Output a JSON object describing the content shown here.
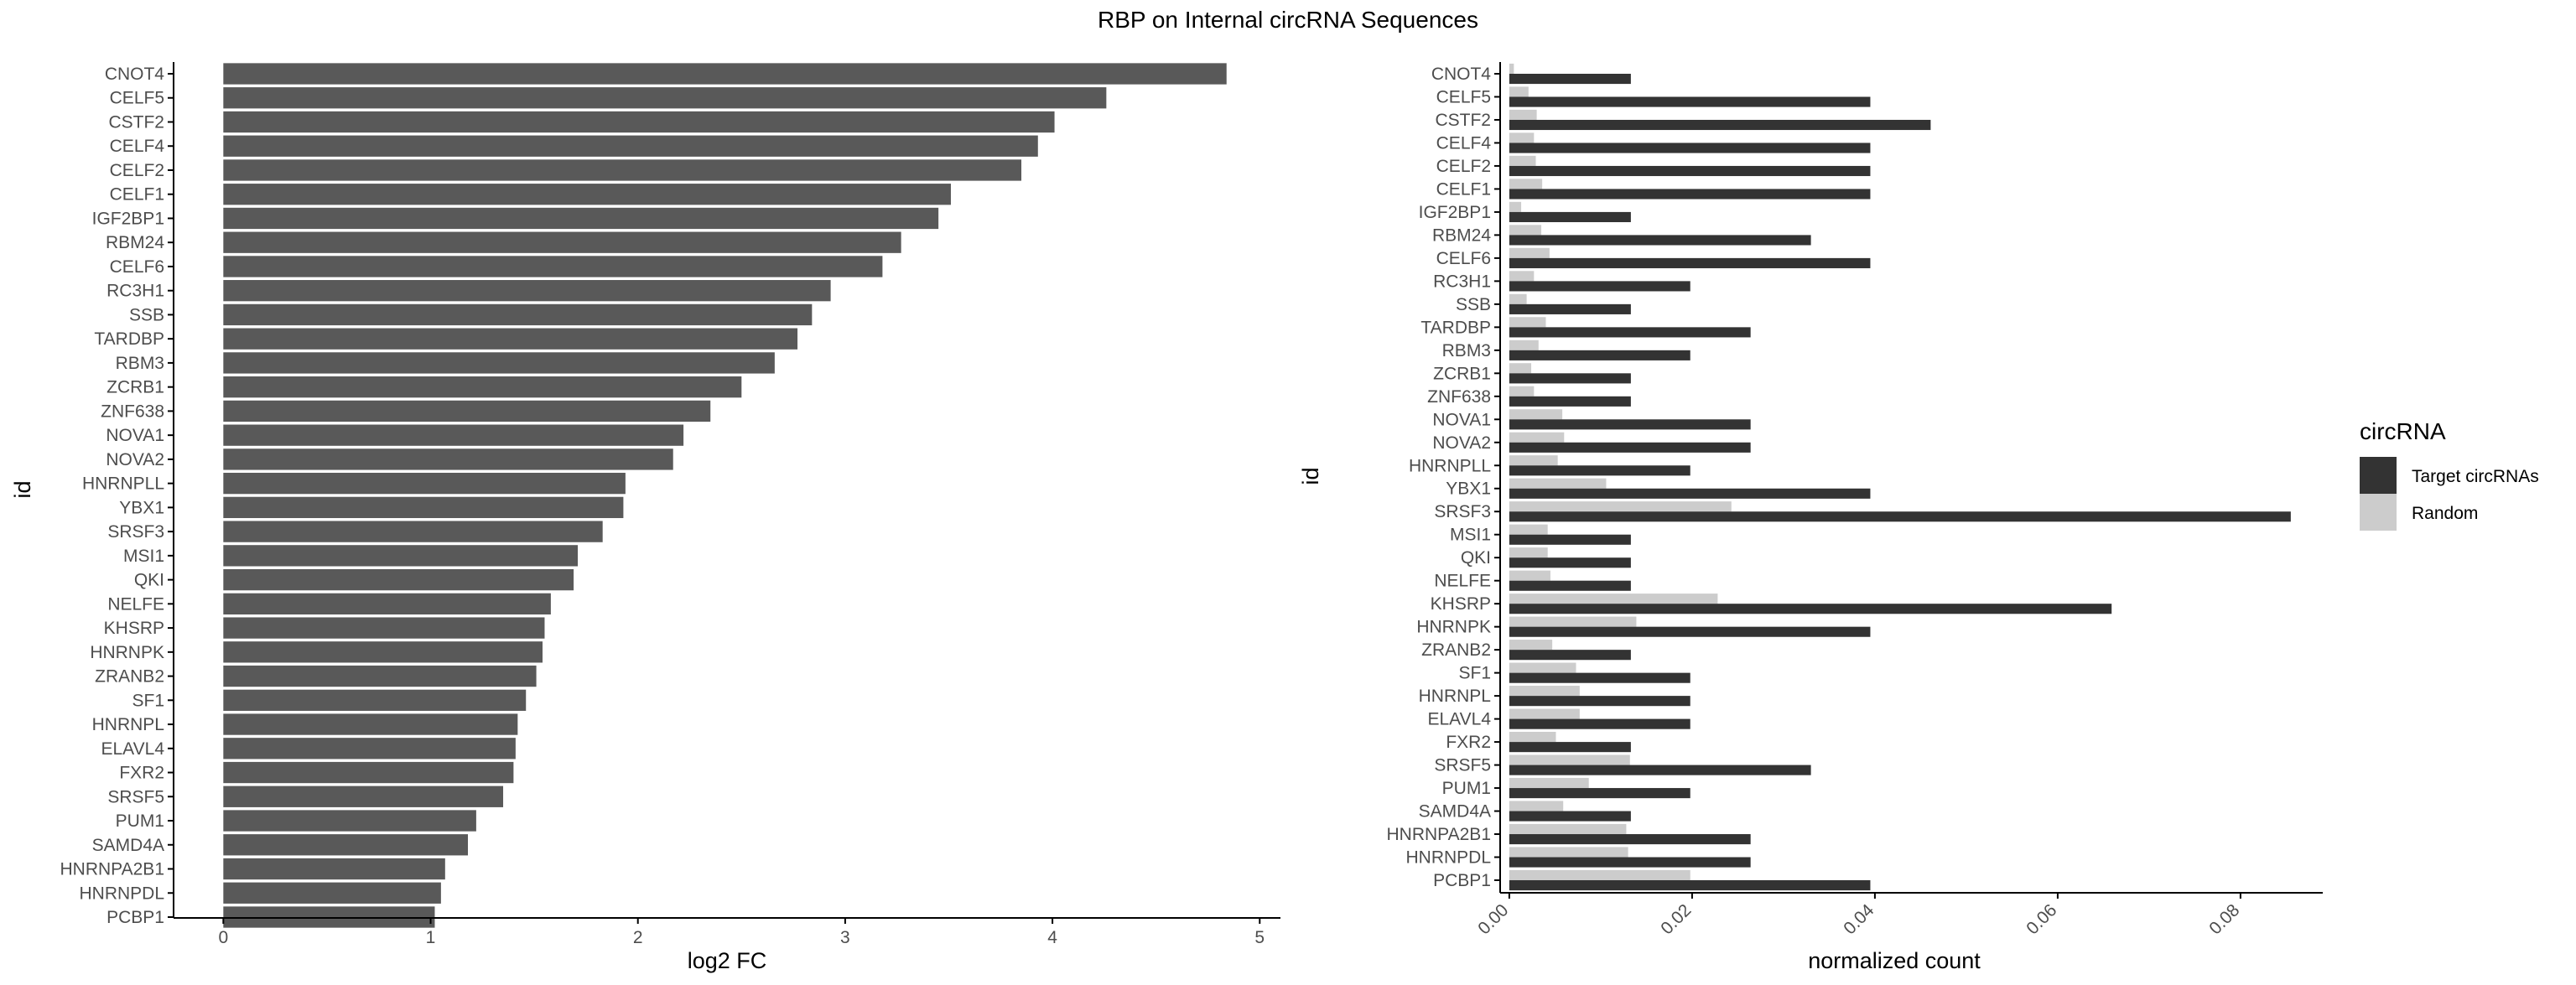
{
  "title": "RBP on Internal circRNA Sequences",
  "colors": {
    "left_bar": "#595959",
    "target": "#333333",
    "random": "#cccccc",
    "axis": "#000000",
    "tick_label": "#4d4d4d",
    "text": "#000000"
  },
  "chart_data": [
    {
      "type": "bar",
      "orientation": "horizontal",
      "xlabel": "log2 FC",
      "ylabel": "id",
      "xlim": [
        -0.24,
        5.1
      ],
      "xticks": [
        0,
        1,
        2,
        3,
        4,
        5
      ],
      "xtick_labels": [
        "0",
        "1",
        "2",
        "3",
        "4",
        "5"
      ],
      "grid": false,
      "categories": [
        "CNOT4",
        "CELF5",
        "CSTF2",
        "CELF4",
        "CELF2",
        "CELF1",
        "IGF2BP1",
        "RBM24",
        "CELF6",
        "RC3H1",
        "SSB",
        "TARDBP",
        "RBM3",
        "ZCRB1",
        "ZNF638",
        "NOVA1",
        "NOVA2",
        "HNRNPLL",
        "YBX1",
        "SRSF3",
        "MSI1",
        "QKI",
        "NELFE",
        "KHSRP",
        "HNRNPK",
        "ZRANB2",
        "SF1",
        "HNRNPL",
        "ELAVL4",
        "FXR2",
        "SRSF5",
        "PUM1",
        "SAMD4A",
        "HNRNPA2B1",
        "HNRNPDL",
        "PCBP1"
      ],
      "values": [
        4.84,
        4.26,
        4.01,
        3.93,
        3.85,
        3.51,
        3.45,
        3.27,
        3.18,
        2.93,
        2.84,
        2.77,
        2.66,
        2.5,
        2.35,
        2.22,
        2.17,
        1.94,
        1.93,
        1.83,
        1.71,
        1.69,
        1.58,
        1.55,
        1.54,
        1.51,
        1.46,
        1.42,
        1.41,
        1.4,
        1.35,
        1.22,
        1.18,
        1.07,
        1.05,
        1.02
      ]
    },
    {
      "type": "bar",
      "orientation": "horizontal",
      "xlabel": "normalized count",
      "ylabel": "id",
      "xlim": [
        -0.001,
        0.089
      ],
      "xticks": [
        0,
        0.02,
        0.04,
        0.06,
        0.08
      ],
      "xtick_labels": [
        "0.00",
        "0.02",
        "0.04",
        "0.06",
        "0.08"
      ],
      "grid": false,
      "legend": {
        "title": "circRNA",
        "position": "right"
      },
      "categories": [
        "CNOT4",
        "CELF5",
        "CSTF2",
        "CELF4",
        "CELF2",
        "CELF1",
        "IGF2BP1",
        "RBM24",
        "CELF6",
        "RC3H1",
        "SSB",
        "TARDBP",
        "RBM3",
        "ZCRB1",
        "ZNF638",
        "NOVA1",
        "NOVA2",
        "HNRNPLL",
        "YBX1",
        "SRSF3",
        "MSI1",
        "QKI",
        "NELFE",
        "KHSRP",
        "HNRNPK",
        "ZRANB2",
        "SF1",
        "HNRNPL",
        "ELAVL4",
        "FXR2",
        "SRSF5",
        "PUM1",
        "SAMD4A",
        "HNRNPA2B1",
        "HNRNPDL",
        "PCBP1"
      ],
      "series": [
        {
          "name": "Target circRNAs",
          "values": [
            0.0133,
            0.0395,
            0.0461,
            0.0395,
            0.0395,
            0.0395,
            0.0133,
            0.033,
            0.0395,
            0.0198,
            0.0133,
            0.0264,
            0.0198,
            0.0133,
            0.0133,
            0.0264,
            0.0264,
            0.0198,
            0.0395,
            0.0855,
            0.0133,
            0.0133,
            0.0133,
            0.0659,
            0.0395,
            0.0133,
            0.0198,
            0.0198,
            0.0198,
            0.0133,
            0.033,
            0.0198,
            0.0133,
            0.0264,
            0.0264,
            0.0395
          ]
        },
        {
          "name": "Random",
          "values": [
            0.0005,
            0.0021,
            0.003,
            0.0027,
            0.0029,
            0.0036,
            0.0013,
            0.0035,
            0.0044,
            0.0027,
            0.0019,
            0.004,
            0.0032,
            0.0024,
            0.0027,
            0.0058,
            0.006,
            0.0053,
            0.0106,
            0.0243,
            0.0042,
            0.0042,
            0.0045,
            0.0228,
            0.0139,
            0.0047,
            0.0073,
            0.0077,
            0.0077,
            0.0051,
            0.0132,
            0.0087,
            0.0059,
            0.0128,
            0.013,
            0.0198
          ]
        }
      ]
    }
  ]
}
